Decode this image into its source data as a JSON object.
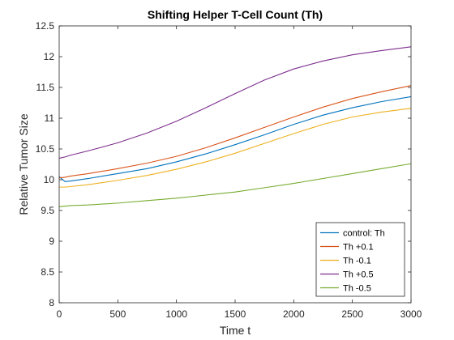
{
  "chart_data": {
    "type": "line",
    "title": "Shifting Helper T-Cell Count (Th)",
    "xlabel": "Time t",
    "ylabel": "Relative Tumor Size",
    "xlim": [
      0,
      3000
    ],
    "ylim": [
      8,
      12.5
    ],
    "xticks": [
      0,
      500,
      1000,
      1500,
      2000,
      2500,
      3000
    ],
    "yticks": [
      8,
      8.5,
      9,
      9.5,
      10,
      10.5,
      11,
      11.5,
      12,
      12.5
    ],
    "xtick_labels": [
      "0",
      "500",
      "1000",
      "1500",
      "2000",
      "2500",
      "3000"
    ],
    "ytick_labels": [
      "8",
      "8.5",
      "9",
      "9.5",
      "10",
      "10.5",
      "11",
      "11.5",
      "12",
      "12.5"
    ],
    "grid": false,
    "legend": "bottom-right",
    "series": [
      {
        "name": "control: Th",
        "color": "#0072BD",
        "x": [
          0,
          50,
          100,
          250,
          500,
          750,
          1000,
          1250,
          1500,
          1750,
          2000,
          2250,
          2500,
          2750,
          3000
        ],
        "y": [
          10.05,
          9.97,
          9.98,
          10.02,
          10.1,
          10.18,
          10.29,
          10.42,
          10.57,
          10.73,
          10.9,
          11.05,
          11.17,
          11.27,
          11.35
        ]
      },
      {
        "name": "Th +0.1",
        "color": "#D95319",
        "x": [
          0,
          50,
          100,
          250,
          500,
          750,
          1000,
          1250,
          1500,
          1750,
          2000,
          2250,
          2500,
          2750,
          3000
        ],
        "y": [
          10.03,
          10.04,
          10.06,
          10.1,
          10.18,
          10.27,
          10.38,
          10.52,
          10.68,
          10.85,
          11.02,
          11.18,
          11.32,
          11.43,
          11.53
        ]
      },
      {
        "name": "Th -0.1",
        "color": "#EDB120",
        "x": [
          0,
          50,
          100,
          250,
          500,
          750,
          1000,
          1250,
          1500,
          1750,
          2000,
          2250,
          2500,
          2750,
          3000
        ],
        "y": [
          9.88,
          9.88,
          9.89,
          9.92,
          9.99,
          10.07,
          10.17,
          10.29,
          10.43,
          10.59,
          10.75,
          10.9,
          11.02,
          11.1,
          11.16
        ]
      },
      {
        "name": "Th +0.5",
        "color": "#7E2F8E",
        "x": [
          0,
          50,
          100,
          250,
          500,
          750,
          1000,
          1250,
          1500,
          1750,
          2000,
          2250,
          2500,
          2750,
          3000
        ],
        "y": [
          10.35,
          10.37,
          10.4,
          10.47,
          10.6,
          10.76,
          10.95,
          11.17,
          11.4,
          11.62,
          11.8,
          11.93,
          12.03,
          12.1,
          12.16
        ]
      },
      {
        "name": "Th -0.5",
        "color": "#77AC30",
        "x": [
          0,
          50,
          100,
          250,
          500,
          750,
          1000,
          1250,
          1500,
          1750,
          2000,
          2250,
          2500,
          2750,
          3000
        ],
        "y": [
          9.56,
          9.57,
          9.58,
          9.59,
          9.62,
          9.66,
          9.7,
          9.75,
          9.8,
          9.87,
          9.94,
          10.02,
          10.1,
          10.18,
          10.26
        ]
      }
    ]
  }
}
